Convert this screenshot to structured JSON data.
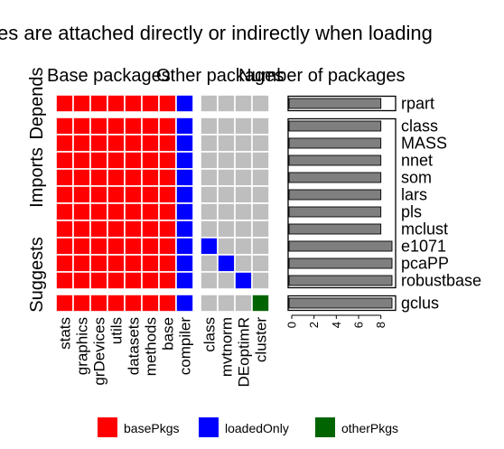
{
  "chart_data": {
    "type": "heatmap",
    "title": "es are attached directly or indirectly when loading",
    "panel_titles": {
      "base": "Base packages",
      "other": "Other packages",
      "number": "Number of packages"
    },
    "groups": [
      "Depends",
      "Imports",
      "Suggests"
    ],
    "packages": [
      "rpart",
      "class",
      "MASS",
      "nnet",
      "som",
      "lars",
      "pls",
      "mclust",
      "e1071",
      "pcaPP",
      "robustbase",
      "gclus"
    ],
    "row_group": [
      "Depends",
      "Imports",
      "Imports",
      "Imports",
      "Imports",
      "Imports",
      "Imports",
      "Imports",
      "Suggests",
      "Suggests",
      "Suggests",
      "Suggests"
    ],
    "panel_breaks_after_row": [
      0,
      10
    ],
    "base_columns": [
      "stats",
      "graphics",
      "grDevices",
      "utils",
      "datasets",
      "methods",
      "base",
      "compiler"
    ],
    "other_columns": [
      "class",
      "mvtnorm",
      "DEoptimR",
      "cluster"
    ],
    "base_cells": [
      [
        1,
        1,
        1,
        1,
        1,
        1,
        1,
        2
      ],
      [
        1,
        1,
        1,
        1,
        1,
        1,
        1,
        2
      ],
      [
        1,
        1,
        1,
        1,
        1,
        1,
        1,
        2
      ],
      [
        1,
        1,
        1,
        1,
        1,
        1,
        1,
        2
      ],
      [
        1,
        1,
        1,
        1,
        1,
        1,
        1,
        2
      ],
      [
        1,
        1,
        1,
        1,
        1,
        1,
        1,
        2
      ],
      [
        1,
        1,
        1,
        1,
        1,
        1,
        1,
        2
      ],
      [
        1,
        1,
        1,
        1,
        1,
        1,
        1,
        2
      ],
      [
        1,
        1,
        1,
        1,
        1,
        1,
        1,
        2
      ],
      [
        1,
        1,
        1,
        1,
        1,
        1,
        1,
        2
      ],
      [
        1,
        1,
        1,
        1,
        1,
        1,
        1,
        2
      ],
      [
        1,
        1,
        1,
        1,
        1,
        1,
        1,
        2
      ]
    ],
    "other_cells": [
      [
        0,
        0,
        0,
        0
      ],
      [
        0,
        0,
        0,
        0
      ],
      [
        0,
        0,
        0,
        0
      ],
      [
        0,
        0,
        0,
        0
      ],
      [
        0,
        0,
        0,
        0
      ],
      [
        0,
        0,
        0,
        0
      ],
      [
        0,
        0,
        0,
        0
      ],
      [
        0,
        0,
        0,
        0
      ],
      [
        2,
        0,
        0,
        0
      ],
      [
        0,
        2,
        0,
        0
      ],
      [
        0,
        0,
        2,
        0
      ],
      [
        0,
        0,
        0,
        3
      ]
    ],
    "counts": [
      8,
      8,
      8,
      8,
      8,
      8,
      8,
      8,
      9,
      9,
      9,
      9
    ],
    "count_axis": {
      "range": [
        0,
        9
      ],
      "ticks": [
        0,
        2,
        4,
        6,
        8
      ]
    },
    "legend": {
      "position": "bottom",
      "items": [
        {
          "label": "basePkgs",
          "color": "#ff0000"
        },
        {
          "label": "loadedOnly",
          "color": "#0000ff"
        },
        {
          "label": "otherPkgs",
          "color": "#006400"
        }
      ]
    },
    "colors": {
      "none": "#bebebe",
      "basePkgs": "#ff0000",
      "loadedOnly": "#0000ff",
      "otherPkgs": "#006400",
      "bar": "#7f7f7f"
    }
  }
}
